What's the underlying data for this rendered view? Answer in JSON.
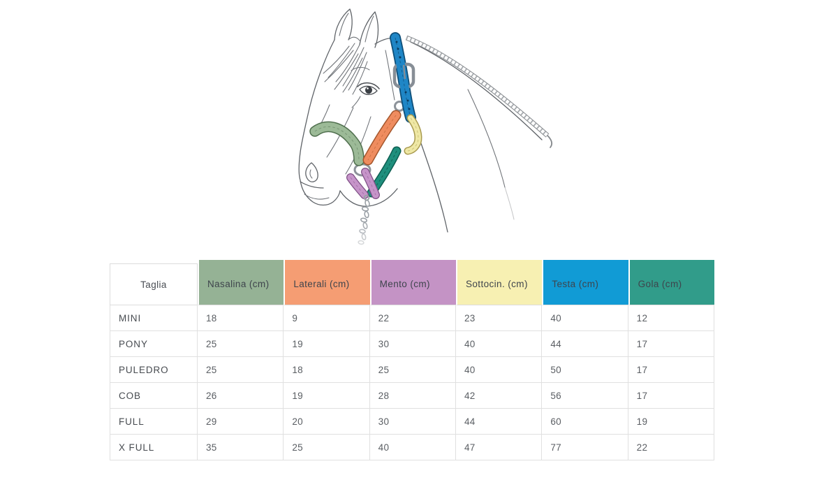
{
  "illustration": {
    "label": "Horse head wearing a halter with color-coded straps and lead rope",
    "strap_colors": {
      "nasalina": "#9cba97",
      "laterali": "#ef8c5f",
      "mento": "#c694c9",
      "sottocin": "#efe8a5",
      "testa": "#1f86c6",
      "gola": "#1f8f7d"
    },
    "strap_outline_colors": {
      "nasalina": "#51704f",
      "laterali": "#a4562c",
      "mento": "#7e4f85",
      "sottocin": "#a89a4e",
      "testa": "#0e4e78",
      "gola": "#0c5e51"
    }
  },
  "table": {
    "size_column_header": "Taglia",
    "columns": [
      {
        "label": "Nasalina (cm)",
        "color": "#95b295"
      },
      {
        "label": "Laterali (cm)",
        "color": "#f59d73"
      },
      {
        "label": "Mento (cm)",
        "color": "#c493c5"
      },
      {
        "label": "Sottocin. (cm)",
        "color": "#f7f0b2"
      },
      {
        "label": "Testa (cm)",
        "color": "#119bd5"
      },
      {
        "label": "Gola (cm)",
        "color": "#319c8a"
      }
    ],
    "rows": [
      {
        "size": "MINI",
        "values": [
          18,
          9,
          22,
          23,
          40,
          12
        ]
      },
      {
        "size": "PONY",
        "values": [
          25,
          19,
          30,
          40,
          44,
          17
        ]
      },
      {
        "size": "PULEDRO",
        "values": [
          25,
          18,
          25,
          40,
          50,
          17
        ]
      },
      {
        "size": "COB",
        "values": [
          26,
          19,
          28,
          42,
          56,
          17
        ]
      },
      {
        "size": "FULL",
        "values": [
          29,
          20,
          30,
          44,
          60,
          19
        ]
      },
      {
        "size": "X FULL",
        "values": [
          35,
          25,
          40,
          47,
          77,
          22
        ]
      }
    ]
  },
  "chart_data": {
    "type": "table",
    "columns": [
      "Taglia",
      "Nasalina (cm)",
      "Laterali (cm)",
      "Mento (cm)",
      "Sottocin. (cm)",
      "Testa (cm)",
      "Gola (cm)"
    ],
    "rows": [
      [
        "MINI",
        18,
        9,
        22,
        23,
        40,
        12
      ],
      [
        "PONY",
        25,
        19,
        30,
        40,
        44,
        17
      ],
      [
        "PULEDRO",
        25,
        18,
        25,
        40,
        50,
        17
      ],
      [
        "COB",
        26,
        19,
        28,
        42,
        56,
        17
      ],
      [
        "FULL",
        29,
        20,
        30,
        44,
        60,
        19
      ],
      [
        "X FULL",
        35,
        25,
        40,
        47,
        77,
        22
      ]
    ]
  }
}
